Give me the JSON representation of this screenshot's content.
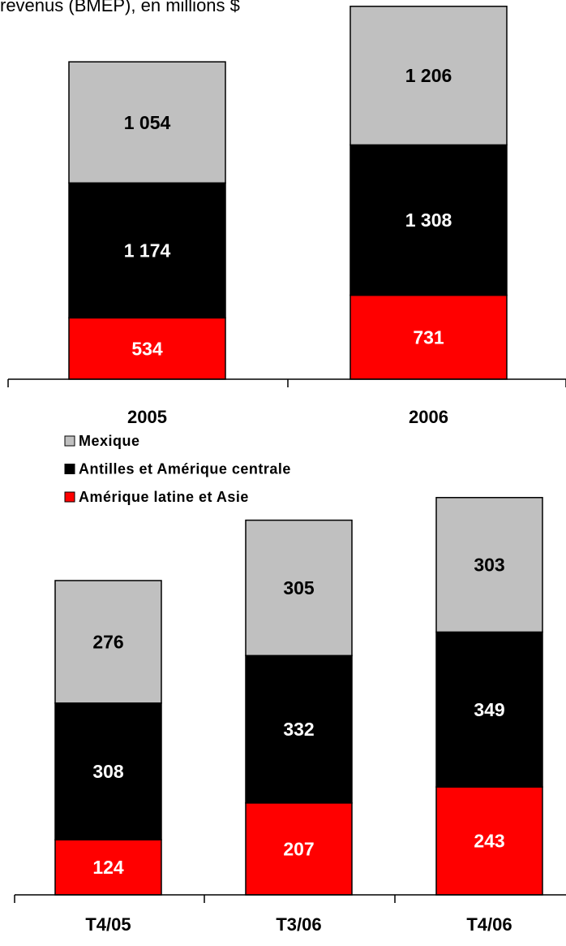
{
  "chart_data": [
    {
      "type": "stacked_bar",
      "title": "revenus (BMEP), en millions $",
      "categories": [
        "2005",
        "2006"
      ],
      "series": [
        {
          "name": "Mexique",
          "color": "#c0c0c0",
          "label_color": "#000000",
          "values": [
            1054,
            1206
          ],
          "value_labels": [
            "1 054",
            "1 206"
          ]
        },
        {
          "name": "Antilles et Amérique centrale",
          "color": "#000000",
          "label_color": "#ffffff",
          "values": [
            1174,
            1308
          ],
          "value_labels": [
            "1 174",
            "1 308"
          ]
        },
        {
          "name": "Amérique latine et Asie",
          "color": "#ff0000",
          "label_color": "#ffffff",
          "values": [
            534,
            731
          ]
        }
      ],
      "ylim": [
        0,
        3300
      ]
    },
    {
      "type": "stacked_bar",
      "categories": [
        "T4/05",
        "T3/06",
        "T4/06"
      ],
      "series": [
        {
          "name": "Mexique",
          "color": "#c0c0c0",
          "label_color": "#000000",
          "values": [
            276,
            305,
            303
          ]
        },
        {
          "name": "Antilles et Amérique centrale",
          "color": "#000000",
          "label_color": "#ffffff",
          "values": [
            308,
            332,
            349
          ]
        },
        {
          "name": "Amérique latine et Asie",
          "color": "#ff0000",
          "label_color": "#ffffff",
          "values": [
            124,
            207,
            243
          ]
        }
      ],
      "ylim": [
        0,
        900
      ]
    }
  ]
}
